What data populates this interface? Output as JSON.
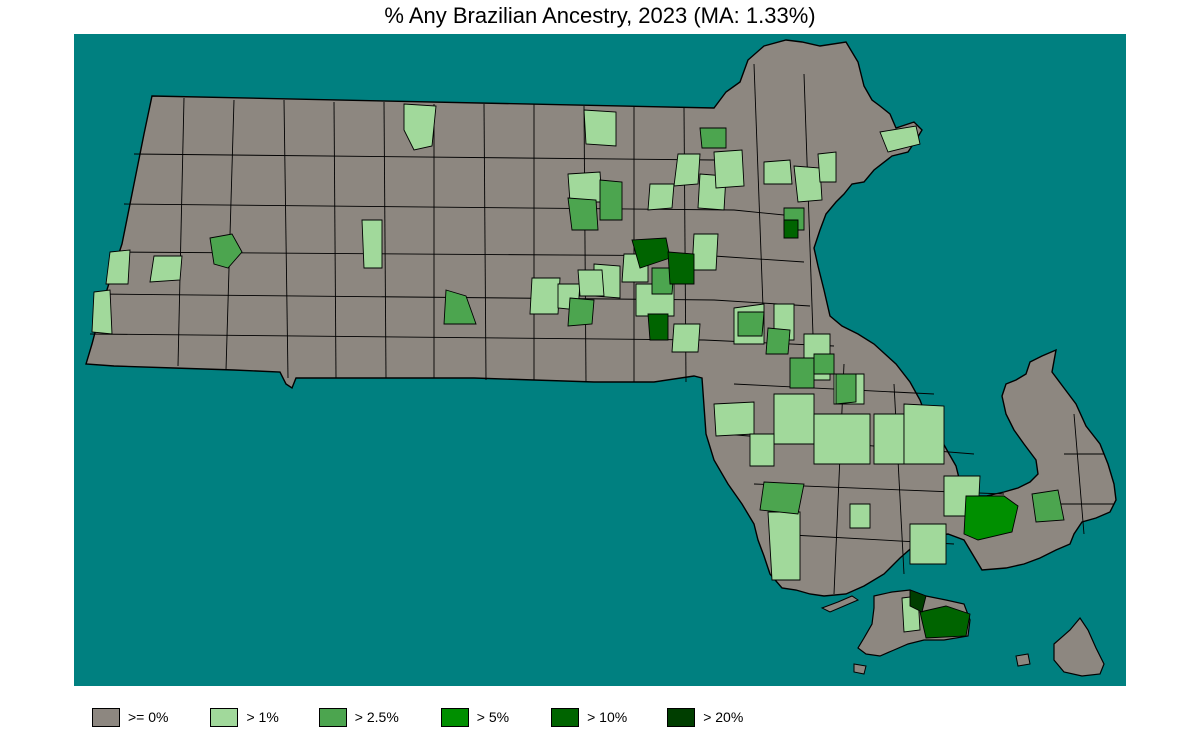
{
  "title": "% Any Brazilian Ancestry, 2023 (MA: 1.33%)",
  "colors": {
    "water": "#008080",
    "c0": "#8d8780",
    "c1": "#a1d99b",
    "c2": "#4ca54f",
    "c3": "#008f00",
    "c4": "#006400",
    "c5": "#003e00",
    "border": "#000000"
  },
  "legend": [
    {
      "label": ">= 0%",
      "color": "#8d8780"
    },
    {
      "label": "> 1%",
      "color": "#a1d99b"
    },
    {
      "label": "> 2.5%",
      "color": "#4ca54f"
    },
    {
      "label": "> 5%",
      "color": "#008f00"
    },
    {
      "label": "> 10%",
      "color": "#006400"
    },
    {
      "label": "> 20%",
      "color": "#003e00"
    }
  ]
}
